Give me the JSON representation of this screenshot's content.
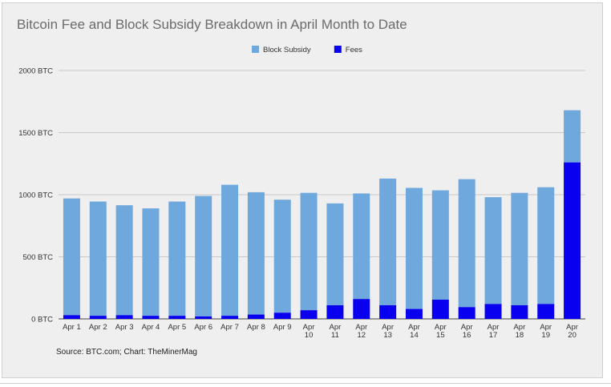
{
  "chart_data": {
    "type": "bar",
    "stacked": true,
    "title": "Bitcoin Fee and Block Subsidy Breakdown in April Month to Date",
    "source": "Source: BTC.com; Chart: TheMinerMag",
    "categories": [
      "Apr 1",
      "Apr 2",
      "Apr 3",
      "Apr 4",
      "Apr 5",
      "Apr 6",
      "Apr 7",
      "Apr 8",
      "Apr 9",
      "Apr 10",
      "Apr 11",
      "Apr 12",
      "Apr 13",
      "Apr 14",
      "Apr 15",
      "Apr 16",
      "Apr 17",
      "Apr 18",
      "Apr 19",
      "Apr 20"
    ],
    "series": [
      {
        "name": "Fees",
        "color": "#0a00f0",
        "values": [
          30,
          25,
          30,
          25,
          25,
          20,
          25,
          35,
          50,
          70,
          110,
          160,
          110,
          80,
          155,
          95,
          120,
          110,
          120,
          1260
        ]
      },
      {
        "name": "Block Subsidy",
        "color": "#6fa8dc",
        "values": [
          940,
          920,
          885,
          865,
          920,
          970,
          1055,
          985,
          910,
          945,
          820,
          850,
          1020,
          975,
          880,
          1030,
          860,
          905,
          940,
          420
        ]
      }
    ],
    "legend": [
      {
        "name": "Block Subsidy",
        "color": "#6fa8dc"
      },
      {
        "name": "Fees",
        "color": "#0a00f0"
      }
    ],
    "legend_position": "top-center",
    "ylim": [
      0,
      2000
    ],
    "y_ticks": [
      {
        "value": 0,
        "label": "0 BTC"
      },
      {
        "value": 500,
        "label": "500 BTC"
      },
      {
        "value": 1000,
        "label": "1000 BTC"
      },
      {
        "value": 1500,
        "label": "1500 BTC"
      },
      {
        "value": 2000,
        "label": "2000 BTC"
      }
    ],
    "grid": true,
    "xlabel": "",
    "ylabel": ""
  }
}
